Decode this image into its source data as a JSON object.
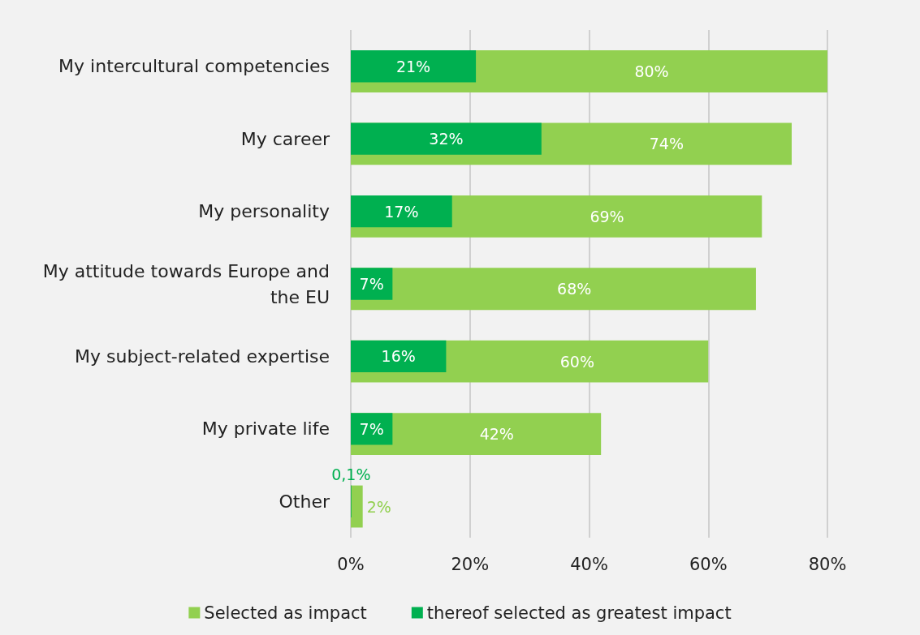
{
  "chart_data": {
    "type": "bar",
    "orientation": "horizontal",
    "categories": [
      "My intercultural competencies",
      "My career",
      "My personality",
      "My attitude towards Europe and the EU",
      "My subject-related expertise",
      "My private life",
      "Other"
    ],
    "series": [
      {
        "name": "Selected as impact",
        "color": "#92d050",
        "values": [
          80,
          74,
          69,
          68,
          60,
          42,
          2
        ],
        "value_labels": [
          "80%",
          "74%",
          "69%",
          "68%",
          "60%",
          "42%",
          "2%"
        ]
      },
      {
        "name": "thereof selected as greatest impact",
        "color": "#00b050",
        "values": [
          21,
          32,
          17,
          7,
          16,
          7,
          0.1
        ],
        "value_labels": [
          "21%",
          "32%",
          "17%",
          "7%",
          "16%",
          "7%",
          "0,1%"
        ]
      }
    ],
    "xlim": [
      0,
      80
    ],
    "xticks": [
      {
        "value": 0,
        "label": "0%"
      },
      {
        "value": 20,
        "label": "20%"
      },
      {
        "value": 40,
        "label": "40%"
      },
      {
        "value": 60,
        "label": "60%"
      },
      {
        "value": 80,
        "label": "80%"
      }
    ],
    "grid": "x",
    "legend": "bottom"
  }
}
